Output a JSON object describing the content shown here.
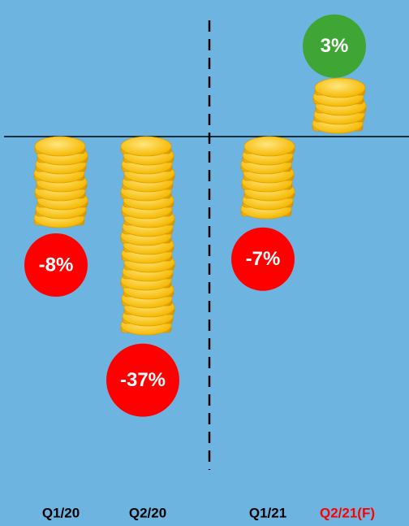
{
  "chart_data": {
    "type": "coin-stack",
    "categories": [
      "Q1/20",
      "Q2/20",
      "Q1/21",
      "Q2/21(F)"
    ],
    "values": [
      -8,
      -37,
      -7,
      3
    ],
    "value_labels": [
      "-8%",
      "-37%",
      "-7%",
      "3%"
    ],
    "label_colors": [
      "#000000",
      "#000000",
      "#000000",
      "#ff0000"
    ],
    "negative_color": "#ff0000",
    "positive_color": "#3fa535"
  }
}
